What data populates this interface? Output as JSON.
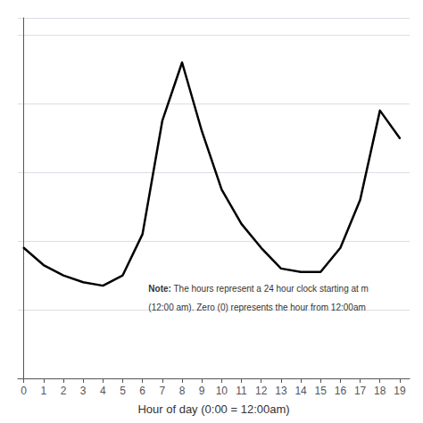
{
  "chart_data": {
    "type": "line",
    "x": [
      0,
      1,
      2,
      3,
      4,
      5,
      6,
      7,
      8,
      9,
      10,
      11,
      12,
      13,
      14,
      15,
      16,
      17,
      18,
      19
    ],
    "values": [
      0.38,
      0.33,
      0.3,
      0.28,
      0.27,
      0.3,
      0.42,
      0.75,
      0.92,
      0.72,
      0.55,
      0.45,
      0.38,
      0.32,
      0.31,
      0.31,
      0.38,
      0.52,
      0.78,
      0.7
    ],
    "color": "#000000",
    "xlabel": "Hour of day (0:00 = 12:00am)",
    "xlim": [
      -0.3,
      19.5
    ],
    "ylim": [
      0.0,
      1.05
    ],
    "xticks": [
      0,
      1,
      2,
      3,
      4,
      5,
      6,
      7,
      8,
      9,
      10,
      11,
      12,
      13,
      14,
      15,
      16,
      17,
      18,
      19
    ],
    "yticks": [
      0.0,
      0.2,
      0.4,
      0.6,
      0.8,
      1.0
    ],
    "grid": true,
    "tick_labels": "x",
    "annotations": [
      "Note:",
      " The hours represent a 24 hour clock starting at m",
      "(12:00 am). Zero (0) represents the hour from 12:00am"
    ]
  }
}
